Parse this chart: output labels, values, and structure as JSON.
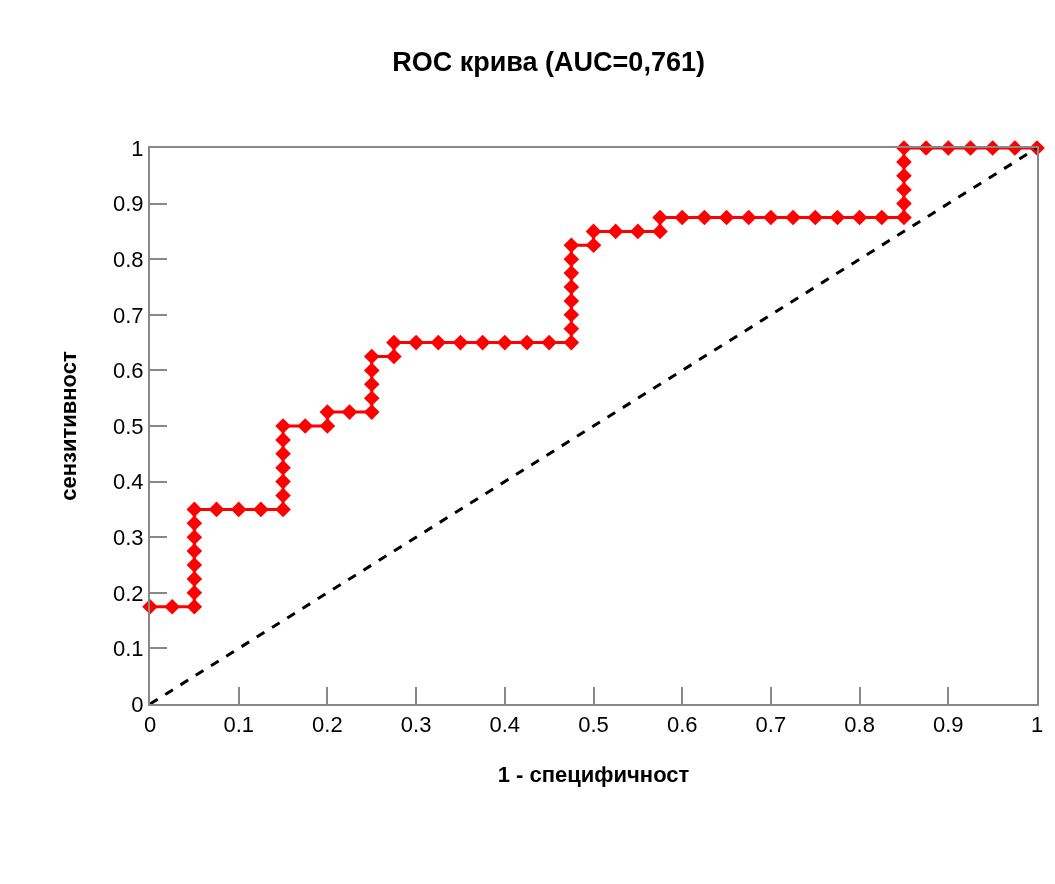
{
  "chart_data": {
    "type": "line",
    "title": "ROC крива (AUC=0,761)",
    "xlabel": "1 - специфичност",
    "ylabel": "сензитивност",
    "xlim": [
      0,
      1
    ],
    "ylim": [
      0,
      1
    ],
    "xticks": [
      0,
      0.1,
      0.2,
      0.3,
      0.4,
      0.5,
      0.6,
      0.7,
      0.8,
      0.9,
      1
    ],
    "yticks": [
      0,
      0.1,
      0.2,
      0.3,
      0.4,
      0.5,
      0.6,
      0.7,
      0.8,
      0.9,
      1
    ],
    "grid": false,
    "series": [
      {
        "color": "#ff0000",
        "marker": "diamond",
        "line_style": "solid",
        "x": [
          0,
          0.025,
          0.05,
          0.05,
          0.05,
          0.05,
          0.05,
          0.05,
          0.05,
          0.05,
          0.075,
          0.1,
          0.125,
          0.15,
          0.15,
          0.15,
          0.15,
          0.15,
          0.15,
          0.15,
          0.175,
          0.2,
          0.2,
          0.225,
          0.25,
          0.25,
          0.25,
          0.25,
          0.25,
          0.275,
          0.275,
          0.3,
          0.325,
          0.35,
          0.375,
          0.4,
          0.425,
          0.45,
          0.475,
          0.475,
          0.475,
          0.475,
          0.475,
          0.475,
          0.475,
          0.475,
          0.5,
          0.5,
          0.525,
          0.55,
          0.575,
          0.575,
          0.6,
          0.625,
          0.65,
          0.675,
          0.7,
          0.725,
          0.75,
          0.775,
          0.8,
          0.825,
          0.85,
          0.85,
          0.85,
          0.85,
          0.85,
          0.85,
          0.875,
          0.9,
          0.925,
          0.95,
          0.975,
          1
        ],
        "values": [
          0.175,
          0.175,
          0.175,
          0.2,
          0.225,
          0.25,
          0.275,
          0.3,
          0.325,
          0.35,
          0.35,
          0.35,
          0.35,
          0.35,
          0.375,
          0.4,
          0.425,
          0.45,
          0.475,
          0.5,
          0.5,
          0.5,
          0.525,
          0.525,
          0.525,
          0.55,
          0.575,
          0.6,
          0.625,
          0.625,
          0.65,
          0.65,
          0.65,
          0.65,
          0.65,
          0.65,
          0.65,
          0.65,
          0.65,
          0.675,
          0.7,
          0.725,
          0.75,
          0.775,
          0.8,
          0.825,
          0.825,
          0.85,
          0.85,
          0.85,
          0.85,
          0.875,
          0.875,
          0.875,
          0.875,
          0.875,
          0.875,
          0.875,
          0.875,
          0.875,
          0.875,
          0.875,
          0.875,
          0.9,
          0.925,
          0.95,
          0.975,
          1,
          1,
          1,
          1,
          1,
          1,
          1
        ]
      },
      {
        "color": "#000000",
        "line_style": "dashed",
        "x": [
          0,
          1
        ],
        "values": [
          0,
          1
        ]
      }
    ]
  }
}
